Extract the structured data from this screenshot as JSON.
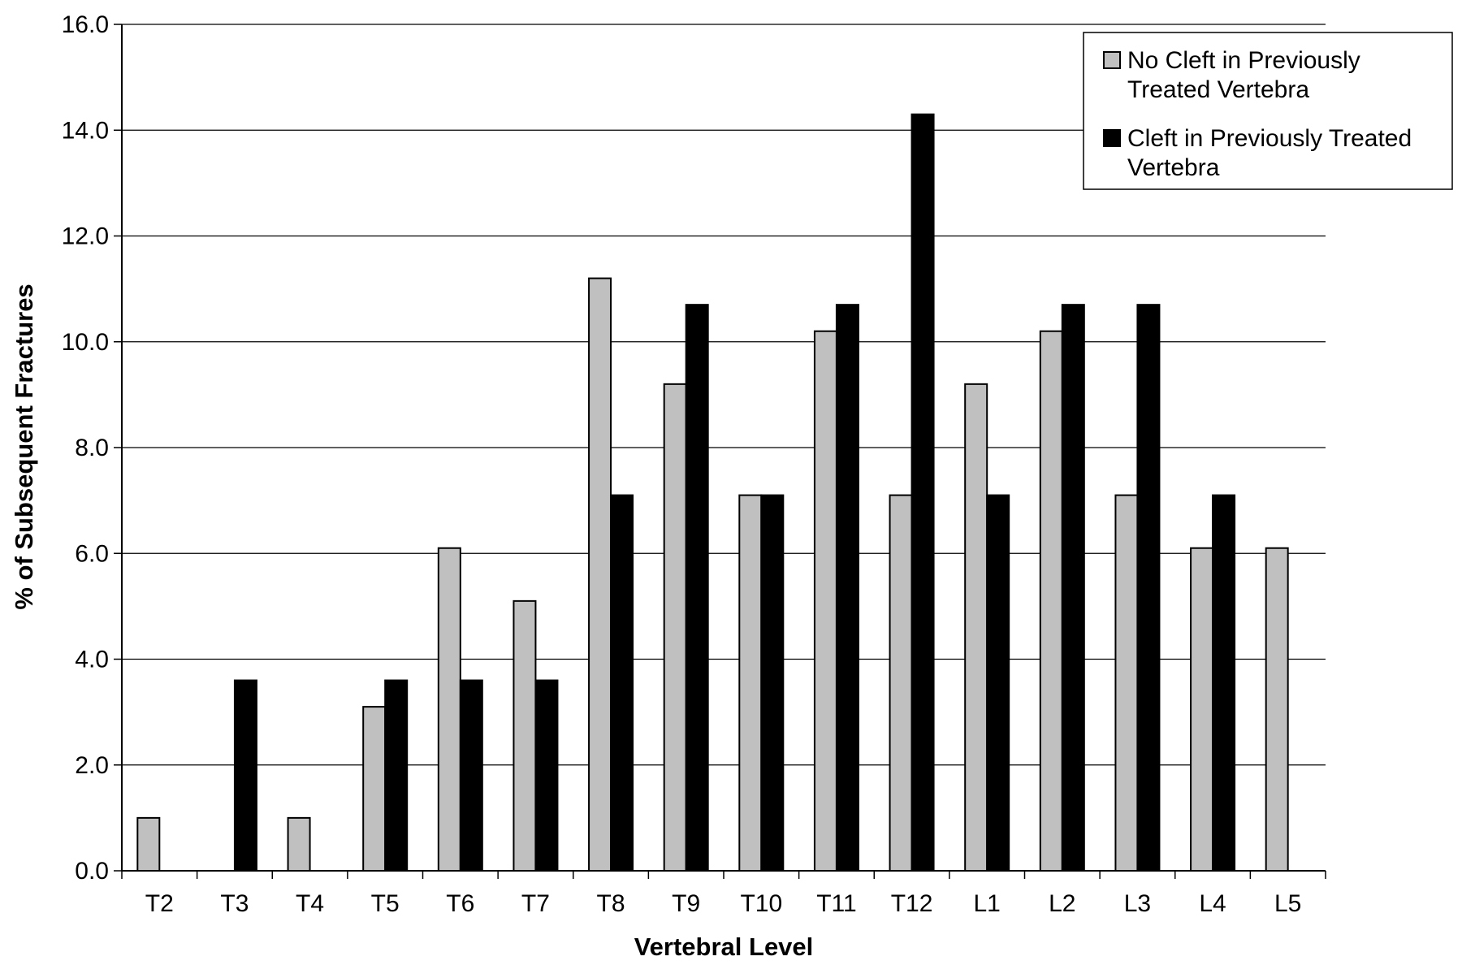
{
  "chart_data": {
    "type": "bar",
    "title": "",
    "xlabel": "Vertebral Level",
    "ylabel": "% of Subsequent Fractures",
    "ylim": [
      0,
      16
    ],
    "yticks": [
      "0.0",
      "2.0",
      "4.0",
      "6.0",
      "8.0",
      "10.0",
      "12.0",
      "14.0",
      "16.0"
    ],
    "grid": true,
    "legend_position": "top-right",
    "categories": [
      "T2",
      "T3",
      "T4",
      "T5",
      "T6",
      "T7",
      "T8",
      "T9",
      "T10",
      "T11",
      "T12",
      "L1",
      "L2",
      "L3",
      "L4",
      "L5"
    ],
    "series": [
      {
        "name": "No Cleft  in Previously Treated Vertebra",
        "legend_lines": [
          "No Cleft  in Previously",
          "Treated Vertebra"
        ],
        "color": "#c0c0c0",
        "values": [
          1.0,
          0,
          1.0,
          3.1,
          6.1,
          5.1,
          11.2,
          9.2,
          7.1,
          10.2,
          7.1,
          9.2,
          10.2,
          7.1,
          6.1,
          6.1
        ]
      },
      {
        "name": "Cleft in Previously Treated Vertebra",
        "legend_lines": [
          "Cleft in Previously Treated",
          "Vertebra"
        ],
        "color": "#000000",
        "values": [
          0,
          3.6,
          0,
          3.6,
          3.6,
          3.6,
          7.1,
          10.7,
          7.1,
          10.7,
          14.3,
          7.1,
          10.7,
          10.7,
          7.1,
          0
        ]
      }
    ]
  }
}
